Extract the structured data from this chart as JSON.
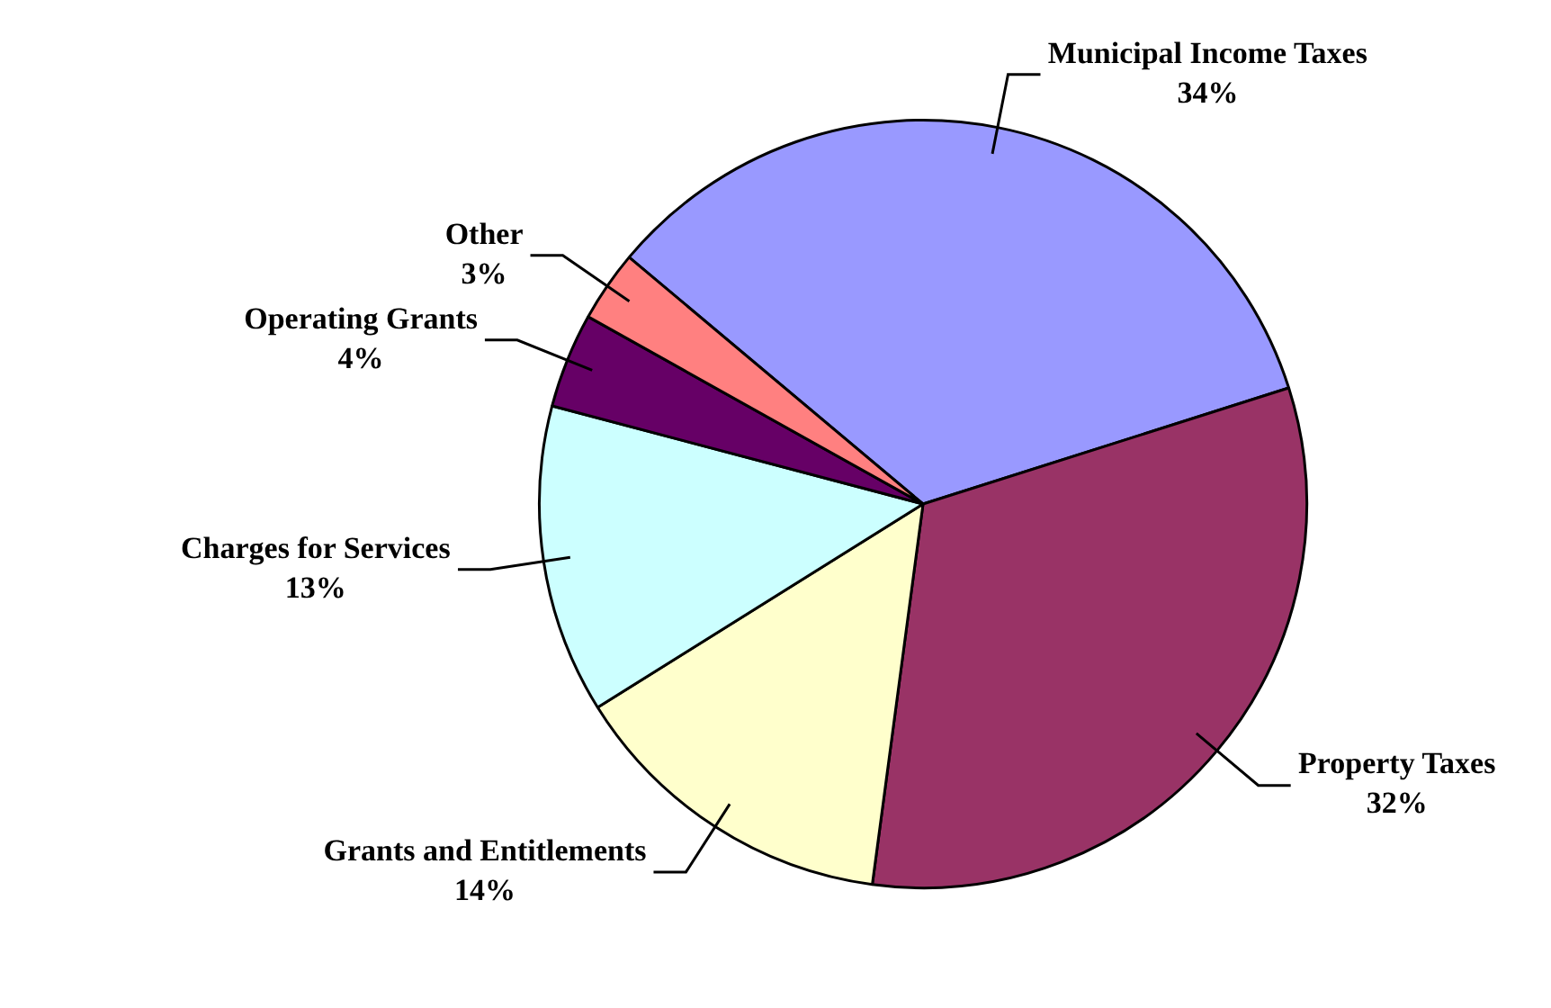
{
  "chart_data": {
    "type": "pie",
    "categories": [
      "Municipal Income Taxes",
      "Property Taxes",
      "Grants and Entitlements",
      "Charges for Services",
      "Operating Grants",
      "Other"
    ],
    "values": [
      34,
      32,
      14,
      13,
      4,
      3
    ],
    "value_labels": [
      "34%",
      "32%",
      "14%",
      "13%",
      "4%",
      "3%"
    ],
    "colors": [
      "#9999ff",
      "#993366",
      "#ffffcc",
      "#ccffff",
      "#660066",
      "#ff8080"
    ],
    "legend": false
  }
}
